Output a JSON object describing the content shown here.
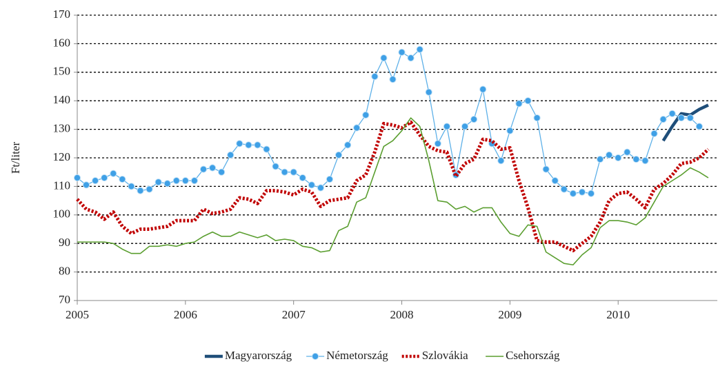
{
  "chart_data": {
    "type": "line",
    "y_label": "Ft/liter",
    "categories": [
      "2005",
      null,
      null,
      null,
      null,
      null,
      null,
      null,
      null,
      null,
      null,
      null,
      "2006",
      null,
      null,
      null,
      null,
      null,
      null,
      null,
      null,
      null,
      null,
      null,
      "2007",
      null,
      null,
      null,
      null,
      null,
      null,
      null,
      null,
      null,
      null,
      null,
      "2008",
      null,
      null,
      null,
      null,
      null,
      null,
      null,
      null,
      null,
      null,
      null,
      "2009",
      null,
      null,
      null,
      null,
      null,
      null,
      null,
      null,
      null,
      null,
      null,
      "2010",
      null,
      null,
      null,
      null,
      null,
      null,
      null,
      null,
      null,
      null
    ],
    "ylim": [
      70,
      170
    ],
    "yticks": [
      70,
      80,
      90,
      100,
      110,
      120,
      130,
      140,
      150,
      160,
      170
    ],
    "grid": true,
    "legend": "bottom",
    "series": [
      {
        "name": "Magyarország",
        "color": "#1f4e79",
        "values": [
          null,
          null,
          null,
          null,
          null,
          null,
          null,
          null,
          null,
          null,
          null,
          null,
          null,
          null,
          null,
          null,
          null,
          null,
          null,
          null,
          null,
          null,
          null,
          null,
          null,
          null,
          null,
          null,
          null,
          null,
          null,
          null,
          null,
          null,
          null,
          null,
          null,
          null,
          null,
          null,
          null,
          null,
          null,
          null,
          null,
          null,
          null,
          null,
          null,
          null,
          null,
          null,
          null,
          null,
          null,
          null,
          null,
          null,
          null,
          null,
          null,
          null,
          null,
          null,
          null,
          126,
          131,
          135.5,
          135,
          137,
          138.5
        ]
      },
      {
        "name": "Németország",
        "color": "#5db0e8",
        "values": [
          113,
          110.5,
          112,
          113,
          114.5,
          112.5,
          110,
          108.5,
          109,
          111.5,
          111,
          112,
          112,
          112,
          116,
          116.5,
          115,
          121,
          125,
          124.5,
          124.5,
          123,
          117,
          115,
          115,
          113,
          110.5,
          109.5,
          112.5,
          121,
          124.5,
          130.5,
          135,
          148.5,
          155,
          147.5,
          157,
          155,
          158,
          143,
          125,
          131,
          114,
          131,
          133.5,
          144,
          125,
          119,
          129.5,
          139,
          140,
          134,
          116,
          112,
          109,
          107.5,
          108,
          107.5,
          119.5,
          121,
          120,
          122,
          119.5,
          119,
          128.5,
          133.5,
          135.5,
          134,
          134,
          131,
          null
        ]
      },
      {
        "name": "Szlovákia",
        "color": "#c00000",
        "values": [
          105.5,
          102,
          101,
          98.5,
          101,
          96,
          93.5,
          95,
          95,
          95.5,
          96,
          98,
          98,
          98,
          102,
          100.5,
          101,
          102,
          106,
          105.5,
          104,
          108.5,
          108.5,
          108,
          107,
          109,
          108,
          103,
          105,
          105.5,
          106,
          112,
          114,
          122,
          132,
          131.5,
          130.5,
          132.5,
          128,
          124,
          122.5,
          122,
          113.5,
          118,
          119.5,
          126.5,
          126,
          123,
          123.5,
          112,
          102.5,
          91,
          90.5,
          90.5,
          89,
          87.5,
          90,
          92.5,
          97.5,
          105,
          107.5,
          108,
          105.5,
          102.5,
          109,
          111,
          114,
          118,
          118.5,
          120,
          123
        ]
      },
      {
        "name": "Csehország",
        "color": "#5a9e2f",
        "values": [
          90.5,
          90.5,
          90.5,
          90.5,
          90,
          88,
          86.5,
          86.5,
          89,
          89,
          89.5,
          89,
          90,
          90.5,
          92.5,
          94,
          92.5,
          92.5,
          94,
          93,
          92,
          93,
          91,
          91.5,
          91,
          89,
          88.5,
          87,
          87.5,
          94.5,
          96,
          104.5,
          106,
          115,
          124,
          126,
          129.5,
          134,
          131,
          119,
          105,
          104.5,
          102,
          103,
          101,
          102.5,
          102.5,
          97.5,
          93.5,
          92.5,
          96.5,
          96,
          87,
          85,
          83,
          82.5,
          86,
          88.5,
          95.5,
          98,
          98,
          97.5,
          96.5,
          99,
          104.5,
          110,
          112,
          114,
          116.5,
          115,
          113
        ]
      }
    ]
  }
}
